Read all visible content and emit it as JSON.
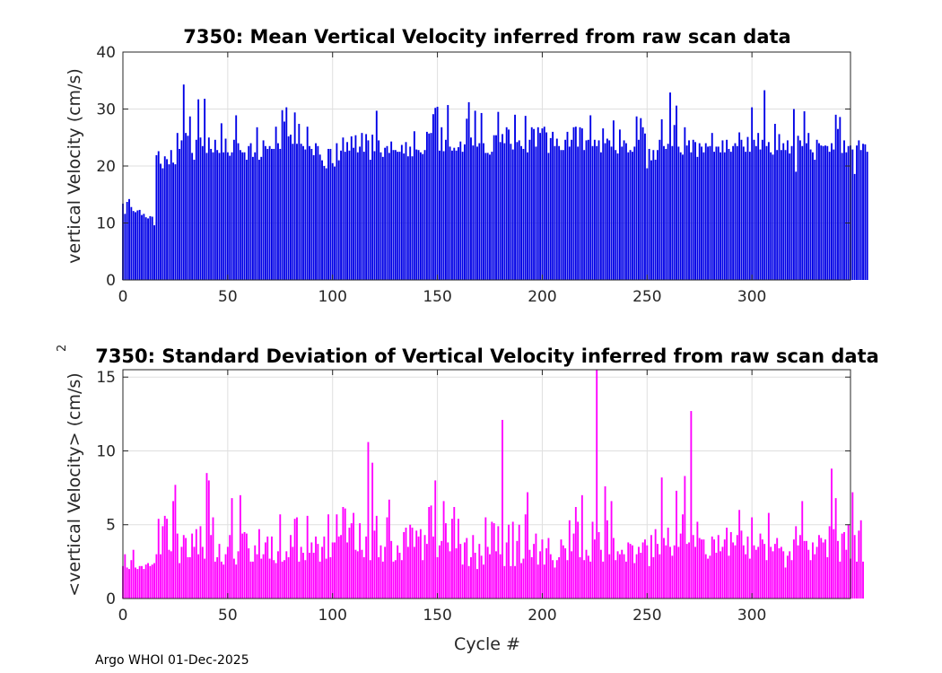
{
  "footer": "Argo WHOI 01-Dec-2025",
  "chart_data": [
    {
      "type": "bar",
      "title": "7350: Mean Vertical Velocity inferred from raw scan data",
      "xlabel": "",
      "ylabel": "vertical Velocity (cm/s)",
      "xlim": [
        0,
        347
      ],
      "ylim": [
        0,
        40
      ],
      "xticks": [
        0,
        50,
        100,
        150,
        200,
        250,
        300
      ],
      "yticks": [
        0,
        10,
        20,
        30,
        40
      ],
      "grid": true,
      "color": "#0000e6",
      "x_start": 0,
      "values": [
        13.4,
        11.6,
        13.7,
        14.2,
        12.8,
        12.1,
        11.9,
        12.2,
        12.3,
        11.4,
        11.6,
        11.0,
        10.8,
        11.2,
        11.1,
        9.6,
        21.9,
        22.6,
        20.4,
        19.6,
        21.7,
        21.2,
        20.3,
        22.8,
        20.6,
        20.3,
        25.8,
        23.0,
        24.5,
        34.3,
        25.8,
        25.3,
        28.7,
        22.3,
        21.1,
        24.6,
        31.7,
        25.0,
        23.5,
        31.8,
        22.3,
        25.0,
        23.0,
        22.4,
        24.6,
        22.8,
        22.3,
        27.5,
        22.4,
        24.8,
        22.4,
        21.8,
        22.4,
        24.6,
        28.9,
        24.0,
        22.8,
        22.4,
        22.4,
        21.1,
        23.5,
        24.0,
        21.6,
        22.4,
        26.8,
        21.1,
        21.6,
        24.5,
        23.5,
        23.0,
        23.5,
        23.0,
        23.0,
        26.9,
        24.0,
        23.0,
        29.8,
        27.8,
        30.3,
        25.2,
        25.5,
        23.9,
        29.4,
        23.9,
        27.4,
        23.9,
        23.5,
        22.9,
        26.9,
        23.5,
        23.0,
        21.9,
        24.0,
        23.5,
        22.0,
        21.0,
        20.0,
        19.6,
        23.0,
        23.0,
        20.5,
        19.9,
        24.0,
        21.0,
        22.7,
        25.0,
        22.5,
        24.2,
        22.7,
        25.2,
        23.2,
        25.4,
        22.4,
        23.4,
        25.8,
        22.5,
        25.6,
        24.5,
        21.1,
        25.5,
        22.6,
        29.7,
        24.5,
        22.4,
        21.6,
        23.2,
        23.5,
        22.3,
        24.3,
        22.8,
        22.8,
        22.5,
        22.5,
        23.7,
        22.2,
        24.2,
        21.7,
        23.4,
        21.7,
        26.1,
        22.9,
        22.8,
        22.4,
        22.1,
        22.8,
        26.0,
        25.7,
        25.8,
        29.1,
        30.2,
        30.4,
        22.7,
        26.8,
        22.6,
        24.6,
        30.7,
        23.4,
        22.7,
        23.2,
        22.7,
        23.3,
        24.3,
        22.5,
        23.8,
        28.3,
        31.2,
        25.0,
        23.6,
        29.7,
        23.4,
        24.0,
        29.3,
        24.0,
        22.3,
        22.3,
        22.0,
        22.5,
        25.4,
        25.4,
        29.5,
        24.2,
        25.6,
        24.0,
        26.8,
        26.4,
        23.9,
        22.9,
        29.0,
        24.2,
        24.5,
        23.5,
        23.0,
        28.8,
        22.4,
        24.6,
        26.8,
        26.5,
        23.4,
        26.8,
        25.8,
        26.6,
        26.9,
        25.9,
        22.3,
        24.9,
        26.0,
        23.5,
        24.8,
        23.5,
        22.8,
        22.8,
        24.6,
        26.0,
        23.4,
        24.6,
        26.8,
        26.9,
        23.4,
        26.8,
        26.6,
        22.8,
        24.5,
        24.6,
        28.9,
        23.5,
        24.6,
        23.5,
        24.5,
        22.4,
        26.6,
        24.0,
        24.8,
        24.5,
        23.4,
        28.0,
        22.8,
        22.2,
        26.4,
        23.4,
        24.5,
        24.0,
        22.4,
        22.8,
        22.5,
        23.4,
        28.7,
        24.6,
        28.4,
        26.8,
        25.7,
        19.6,
        23.0,
        21.0,
        22.8,
        21.1,
        22.8,
        24.6,
        28.2,
        23.5,
        23.0,
        23.9,
        32.9,
        23.5,
        27.2,
        30.6,
        23.4,
        22.4,
        22.0,
        26.8,
        23.6,
        24.5,
        22.4,
        24.6,
        24.2,
        21.6,
        24.0,
        23.4,
        22.4,
        24.0,
        23.4,
        23.5,
        25.8,
        22.5,
        23.4,
        23.4,
        22.4,
        24.5,
        22.4,
        24.6,
        23.0,
        22.5,
        23.5,
        24.0,
        23.5,
        25.9,
        24.6,
        23.4,
        22.5,
        25.1,
        22.5,
        30.3,
        24.6,
        23.5,
        25.8,
        22.9,
        24.6,
        33.3,
        23.5,
        24.2,
        22.4,
        22.0,
        27.4,
        22.8,
        25.6,
        22.8,
        24.0,
        22.8,
        24.5,
        22.2,
        23.5,
        30.0,
        19.0,
        25.3,
        24.5,
        23.5,
        29.6,
        24.0,
        25.8,
        22.9,
        22.4,
        21.1,
        24.6,
        24.0,
        23.6,
        23.5,
        23.6,
        23.5,
        22.5,
        24.0,
        22.9,
        29.0,
        26.5,
        28.6,
        22.3,
        24.5,
        22.4,
        23.5,
        23.6,
        22.9,
        18.6,
        23.6,
        24.5,
        22.8,
        23.9,
        23.8,
        22.5
      ]
    },
    {
      "type": "bar",
      "title": "7350: Standard Deviation of Vertical Velocity inferred from raw scan data",
      "xlabel": "Cycle #",
      "ylabel": "<vertical Velocity> (cm/s)",
      "ylabel_superscript": "2",
      "xlim": [
        0,
        347
      ],
      "ylim": [
        0,
        15.5
      ],
      "xticks": [
        0,
        50,
        100,
        150,
        200,
        250,
        300
      ],
      "yticks": [
        0,
        5,
        10,
        15
      ],
      "grid": true,
      "color": "#ff00ff",
      "x_start": 0,
      "values": [
        2.2,
        3.0,
        2.1,
        2.0,
        2.6,
        3.3,
        2.1,
        2.0,
        2.2,
        2.2,
        2.0,
        2.3,
        2.4,
        2.2,
        2.3,
        2.4,
        3.0,
        5.4,
        3.0,
        4.9,
        5.6,
        5.4,
        3.3,
        3.2,
        6.6,
        7.7,
        4.4,
        2.4,
        3.5,
        4.3,
        4.1,
        2.8,
        2.8,
        4.4,
        3.5,
        4.7,
        3.0,
        4.9,
        3.5,
        2.7,
        8.5,
        8.0,
        4.3,
        5.5,
        2.5,
        2.8,
        3.7,
        2.5,
        2.3,
        3.0,
        3.5,
        4.3,
        6.8,
        2.7,
        2.3,
        3.2,
        7.0,
        4.4,
        4.5,
        4.4,
        3.4,
        2.5,
        2.5,
        3.6,
        3.0,
        4.7,
        2.7,
        3.0,
        3.8,
        4.2,
        2.7,
        4.2,
        2.6,
        2.4,
        3.2,
        5.7,
        2.5,
        2.6,
        3.2,
        2.8,
        4.3,
        3.5,
        5.4,
        5.5,
        2.5,
        3.5,
        3.1,
        2.6,
        5.6,
        3.1,
        3.8,
        3.1,
        4.2,
        3.7,
        2.5,
        3.5,
        4.2,
        2.7,
        5.7,
        2.8,
        3.8,
        3.8,
        5.7,
        4.2,
        4.3,
        6.2,
        6.1,
        3.8,
        4.8,
        5.1,
        5.8,
        3.3,
        3.2,
        5.1,
        3.3,
        2.8,
        4.2,
        10.6,
        2.6,
        9.2,
        4.6,
        5.6,
        2.8,
        3.6,
        2.5,
        3.5,
        5.5,
        6.7,
        3.9,
        2.5,
        2.6,
        3.6,
        3.1,
        2.6,
        4.5,
        4.8,
        3.5,
        5.0,
        4.8,
        3.5,
        4.6,
        4.2,
        4.7,
        2.6,
        4.3,
        3.7,
        6.2,
        6.3,
        4.2,
        8.0,
        2.8,
        3.6,
        3.9,
        6.6,
        5.1,
        3.8,
        3.2,
        5.4,
        6.2,
        3.4,
        5.4,
        3.7,
        2.3,
        3.8,
        4.1,
        2.2,
        2.8,
        4.3,
        3.1,
        2.0,
        3.7,
        2.9,
        2.3,
        5.5,
        3.5,
        3.0,
        5.2,
        5.1,
        3.2,
        4.9,
        3.0,
        12.1,
        2.2,
        3.8,
        5.0,
        2.2,
        5.2,
        2.2,
        3.9,
        5.0,
        2.4,
        2.7,
        5.7,
        7.2,
        3.3,
        2.8,
        3.7,
        4.4,
        2.3,
        3.2,
        4.0,
        2.3,
        3.4,
        4.1,
        3.0,
        2.6,
        2.1,
        2.6,
        2.8,
        4.0,
        3.6,
        3.4,
        2.6,
        5.3,
        3.2,
        4.4,
        6.2,
        5.2,
        2.8,
        7.0,
        2.6,
        3.3,
        2.9,
        2.5,
        5.2,
        4.0,
        15.5,
        4.5,
        3.3,
        2.5,
        7.6,
        5.3,
        3.0,
        6.6,
        4.1,
        2.6,
        3.2,
        3.0,
        3.3,
        3.0,
        2.5,
        3.8,
        3.7,
        3.6,
        2.4,
        3.0,
        3.5,
        3.1,
        3.8,
        4.0,
        3.6,
        2.2,
        4.3,
        2.8,
        4.7,
        3.7,
        3.0,
        8.2,
        4.1,
        3.6,
        4.8,
        3.5,
        2.9,
        3.6,
        7.3,
        3.5,
        4.4,
        5.7,
        8.3,
        3.7,
        3.8,
        12.7,
        4.3,
        3.5,
        5.2,
        4.1,
        4.0,
        4.0,
        3.0,
        2.7,
        2.9,
        4.2,
        4.0,
        3.1,
        4.3,
        3.2,
        3.5,
        4.0,
        4.8,
        2.9,
        4.5,
        3.8,
        3.6,
        4.3,
        6.0,
        4.6,
        3.6,
        3.0,
        4.2,
        2.7,
        5.5,
        3.6,
        3.3,
        3.5,
        4.4,
        4.0,
        3.7,
        2.6,
        5.8,
        3.5,
        3.2,
        3.7,
        4.1,
        3.4,
        3.5,
        3.2,
        2.1,
        2.9,
        3.2,
        2.6,
        4.0,
        4.9,
        3.6,
        4.3,
        6.6,
        3.9,
        3.9,
        3.3,
        2.6,
        3.8,
        3.0,
        3.5,
        4.3,
        4.1,
        3.8,
        4.0,
        2.8,
        4.9,
        8.8,
        4.7,
        6.8,
        3.9,
        2.5,
        4.4,
        4.5,
        3.3,
        5.0,
        2.7,
        7.2,
        4.3,
        2.5,
        4.6,
        5.3,
        2.5
      ]
    }
  ]
}
